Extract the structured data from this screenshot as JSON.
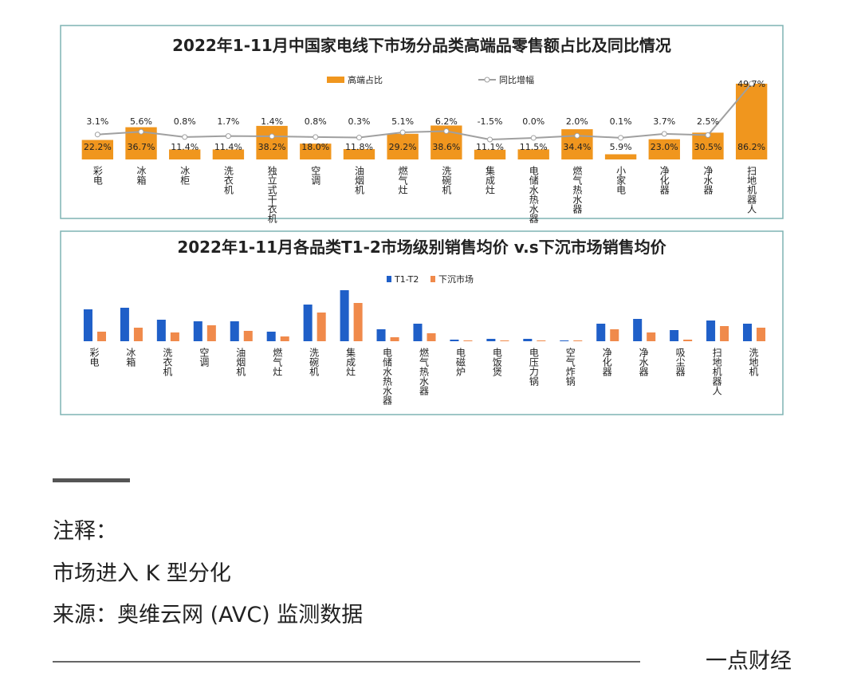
{
  "chart_data": [
    {
      "type": "bar",
      "title": "2022年1-11月中国家电线下市场分品类高端品零售额占比及同比情况",
      "categories": [
        "彩电",
        "冰箱",
        "冰柜",
        "洗衣机",
        "独立式干衣机",
        "空调",
        "油烟机",
        "燃气灶",
        "洗碗机",
        "集成灶",
        "电储水热水器",
        "燃气热水器",
        "小家电",
        "净化器",
        "净水器",
        "扫地机器人"
      ],
      "series": [
        {
          "name": "高端占比",
          "type": "bar",
          "color": "#f0961e",
          "values": [
            22.2,
            36.7,
            11.4,
            11.4,
            38.2,
            18.0,
            11.8,
            29.2,
            38.6,
            11.1,
            11.5,
            34.4,
            5.9,
            23.0,
            30.5,
            86.2
          ],
          "value_labels": [
            "22.2%",
            "36.7%",
            "11.4%",
            "11.4%",
            "38.2%",
            "18.0%",
            "11.8%",
            "29.2%",
            "38.6%",
            "11.1%",
            "11.5%",
            "34.4%",
            "5.9%",
            "23.0%",
            "30.5%",
            "86.2%"
          ]
        },
        {
          "name": "同比增幅",
          "type": "line",
          "axis": "y2",
          "color": "#a0a0a0",
          "values": [
            3.1,
            5.6,
            0.8,
            1.7,
            1.4,
            0.8,
            0.3,
            5.1,
            6.2,
            -1.5,
            0.0,
            2.0,
            0.1,
            3.7,
            2.5,
            49.7
          ],
          "value_labels": [
            "3.1%",
            "5.6%",
            "0.8%",
            "1.7%",
            "1.4%",
            "0.8%",
            "0.3%",
            "5.1%",
            "6.2%",
            "-1.5%",
            "0.0%",
            "2.0%",
            "0.1%",
            "3.7%",
            "2.5%",
            "49.7%"
          ]
        }
      ]
    },
    {
      "type": "bar",
      "title": "2022年1-11月各品类T1-2市场级别销售均价 v.s下沉市场销售均价",
      "categories": [
        "彩电",
        "冰箱",
        "洗衣机",
        "空调",
        "油烟机",
        "燃气灶",
        "洗碗机",
        "集成灶",
        "电储水热水器",
        "燃气热水器",
        "电磁炉",
        "电饭煲",
        "电压力锅",
        "空气炸锅",
        "净化器",
        "净水器",
        "吸尘器",
        "扫地机器人",
        "洗地机"
      ],
      "series": [
        {
          "name": "T1-T2",
          "type": "bar",
          "color": "#1f5fc8",
          "values": [
            40,
            42,
            27,
            25,
            25,
            12,
            46,
            64,
            15,
            22,
            2,
            3,
            3,
            1,
            22,
            28,
            14,
            26,
            22
          ]
        },
        {
          "name": "下沉市场",
          "type": "bar",
          "color": "#f08a4b",
          "values": [
            12,
            17,
            11,
            20,
            13,
            6,
            36,
            48,
            5,
            10,
            1,
            1,
            1,
            1,
            15,
            11,
            2,
            19,
            17
          ]
        }
      ]
    }
  ],
  "notes": {
    "heading": "注释：",
    "line1": "市场进入 K 型分化",
    "source": "来源：奥维云网 (AVC) 监测数据",
    "brand": "一点财经"
  }
}
